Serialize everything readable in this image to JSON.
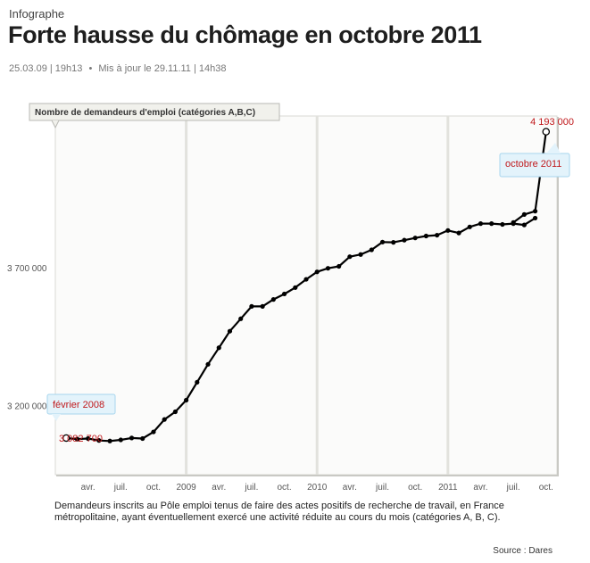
{
  "header": {
    "kicker": "Infographe",
    "title": "Forte hausse du chômage en octobre 2011",
    "published": "25.03.09 | 19h13",
    "separator": "•",
    "updated": "Mis à jour le 29.11.11 | 14h38"
  },
  "footer": {
    "description": "Demandeurs inscrits au Pôle emploi tenus de faire des actes positifs de recherche de travail, en France métropolitaine, ayant éventuellement exercé une activité réduite au cours du mois (catégories A, B, C).",
    "source": "Source :  Dares"
  },
  "chart_data": {
    "type": "line",
    "title": "Nombre de demandeurs d'emploi (catégories A,B,C)",
    "xlabel": "",
    "ylabel": "",
    "x_start": "2008-02",
    "x_end": "2011-10",
    "xlim": [
      "2008-01",
      "2011-11"
    ],
    "ylim": [
      2950000,
      4250000
    ],
    "y_ticks": [
      3200000,
      3700000
    ],
    "y_tick_labels": [
      "3 200 000",
      "3 700 000"
    ],
    "x_ticks": [
      {
        "label": "avr.",
        "date": "2008-04"
      },
      {
        "label": "juil.",
        "date": "2008-07"
      },
      {
        "label": "oct.",
        "date": "2008-10"
      },
      {
        "label": "2009",
        "date": "2009-01"
      },
      {
        "label": "avr.",
        "date": "2009-04"
      },
      {
        "label": "juil.",
        "date": "2009-07"
      },
      {
        "label": "oct.",
        "date": "2009-10"
      },
      {
        "label": "2010",
        "date": "2010-01"
      },
      {
        "label": "avr.",
        "date": "2010-04"
      },
      {
        "label": "juil.",
        "date": "2010-07"
      },
      {
        "label": "oct.",
        "date": "2010-10"
      },
      {
        "label": "2011",
        "date": "2011-01"
      },
      {
        "label": "avr.",
        "date": "2011-04"
      },
      {
        "label": "juil.",
        "date": "2011-07"
      },
      {
        "label": "oct.",
        "date": "2011-10"
      }
    ],
    "grid_years": [
      "2009-01",
      "2010-01",
      "2011-01"
    ],
    "series": [
      {
        "values": [
          3082700,
          3079000,
          3081000,
          3074000,
          3072000,
          3076000,
          3083000,
          3081000,
          3105000,
          3150000,
          3178000,
          3220000,
          3285000,
          3350000,
          3410000,
          3470000,
          3515000,
          3560000,
          3560000,
          3585000,
          3605000,
          3628000,
          3658000,
          3685000,
          3698000,
          3705000,
          3740000,
          3748000,
          3765000,
          3793000,
          3792000,
          3800000,
          3808000,
          3815000,
          3818000,
          3835000,
          3826000,
          3848000,
          3860000,
          3860000,
          3857000,
          3860000,
          3855000,
          3880000,
          4193000
        ],
        "line_color": "#000000",
        "gaps_before": [
          44
        ],
        "extra_segment": {
          "from": 41,
          "to": 43,
          "values": [
            3855000,
            3870000,
            3895000
          ]
        }
      }
    ],
    "annotations": [
      {
        "label": "février 2008",
        "date": "2008-02",
        "value": "3 082 700"
      },
      {
        "label": "octobre 2011",
        "date": "2011-10",
        "value": "4 193 000"
      }
    ],
    "label_color": "#c0181b",
    "grid": true,
    "legend": "none"
  }
}
